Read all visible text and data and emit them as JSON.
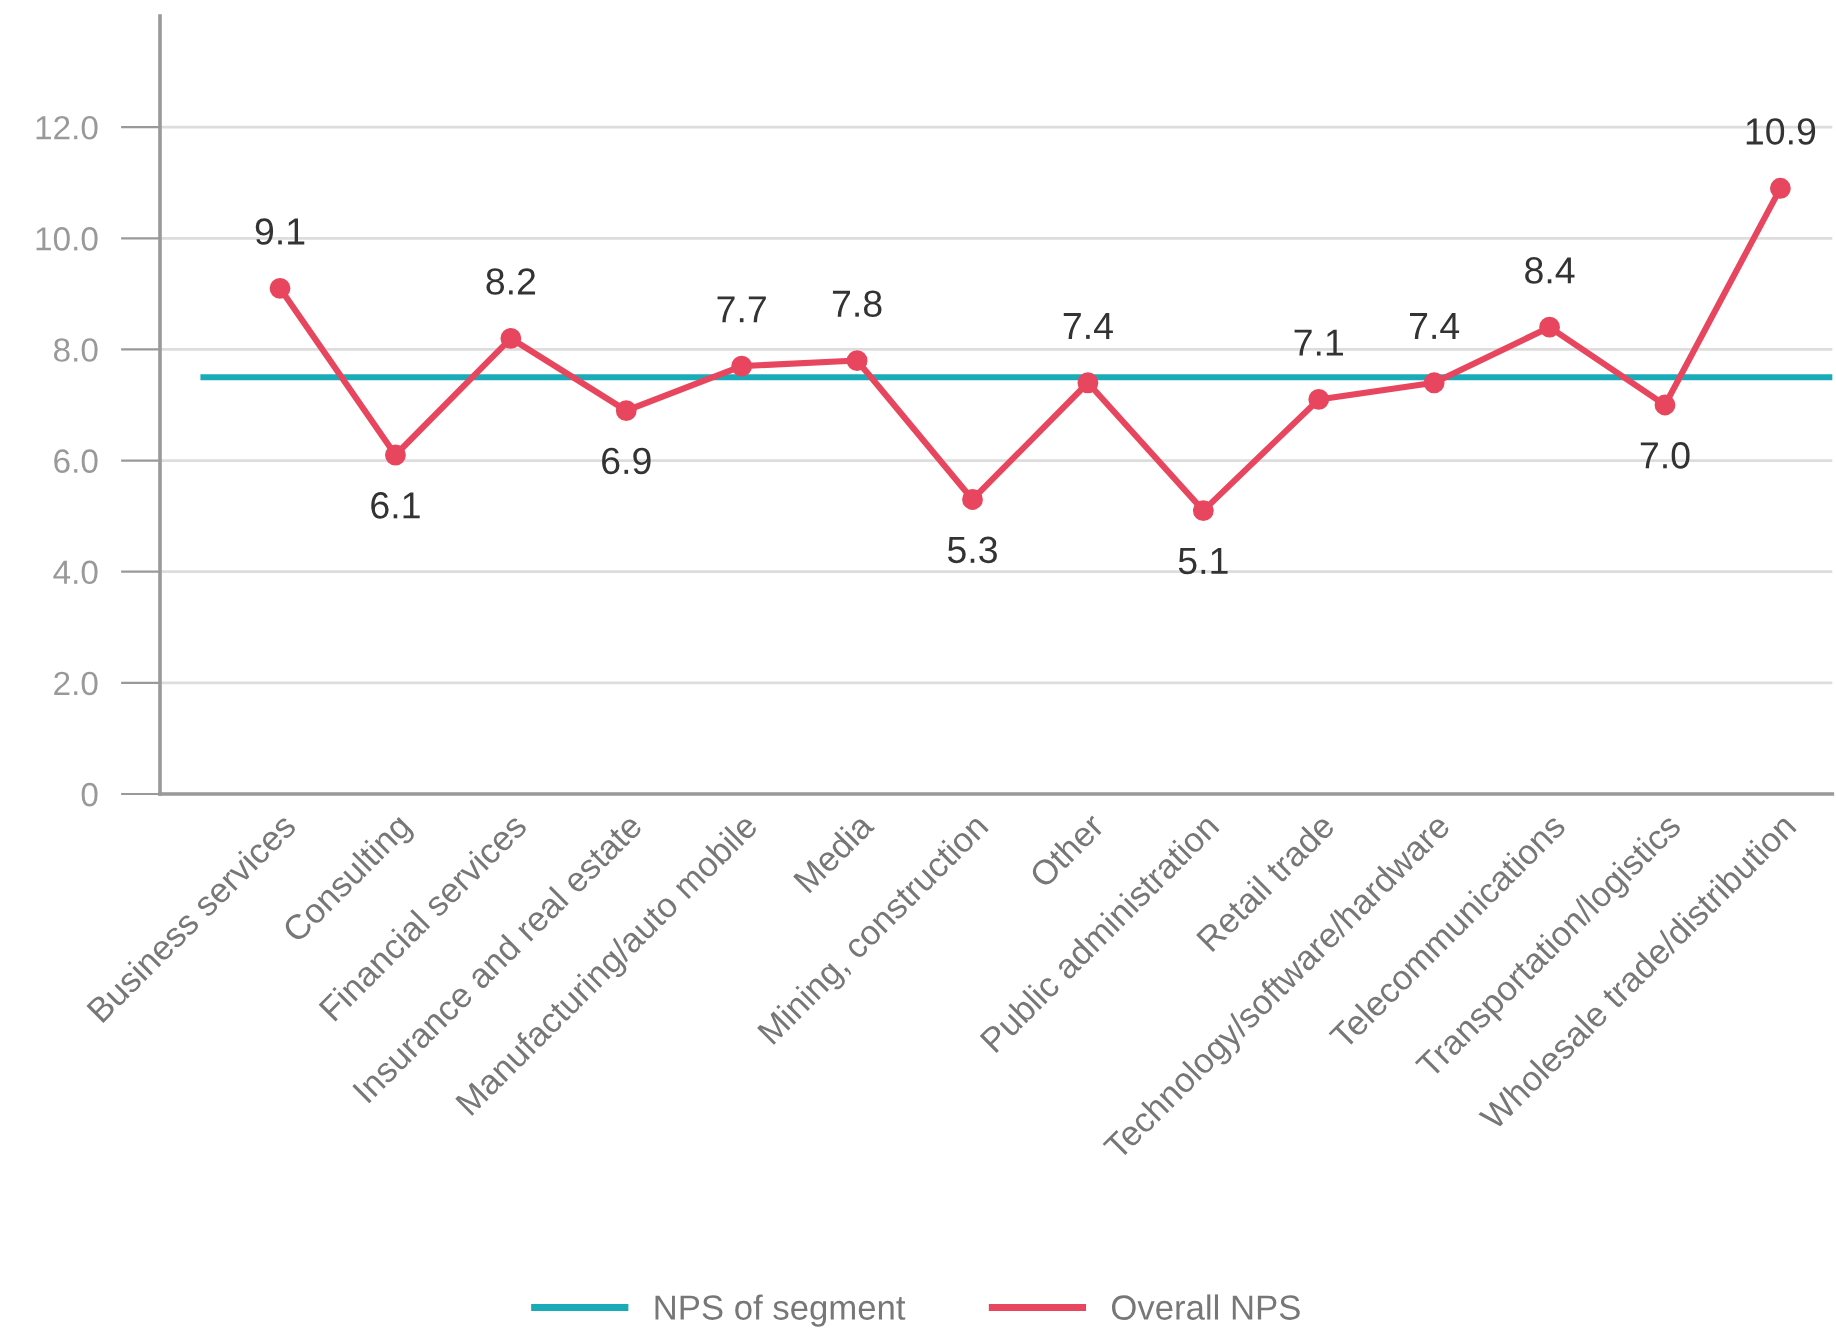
{
  "chart_data": {
    "type": "line",
    "categories": [
      "Business services",
      "Consulting",
      "Financial services",
      "Insurance and real estate",
      "Manufacturing/auto mobile",
      "Media",
      "Mining, construction",
      "Other",
      "Public administration",
      "Retail trade",
      "Technology/software/hardware",
      "Telecommunications",
      "Transportation/logistics",
      "Wholesale trade/distribution"
    ],
    "series": [
      {
        "name": "Overall NPS",
        "color": "#e8465e",
        "values": [
          9.1,
          6.1,
          8.2,
          6.9,
          7.7,
          7.8,
          5.3,
          7.4,
          5.1,
          7.1,
          7.4,
          8.4,
          7.0,
          10.9
        ],
        "value_labels": [
          "9.1",
          "6.1",
          "8.2",
          "6.9",
          "7.7",
          "7.8",
          "5.3",
          "7.4",
          "5.1",
          "7.1",
          "7.4",
          "8.4",
          "7.0",
          "10.9"
        ]
      }
    ],
    "ref_lines": [
      {
        "axis": "y",
        "value": 7.5,
        "label": "NPS of segment",
        "color": "#1aabb8",
        "line_style": "solid"
      }
    ],
    "ylim": [
      0,
      14
    ],
    "yticks": [
      0,
      {
        "value": 2,
        "label": "2.0"
      },
      {
        "value": 4,
        "label": "4.0"
      },
      {
        "value": 6,
        "label": "6.0"
      },
      {
        "value": 8,
        "label": "8.0"
      },
      {
        "value": 10,
        "label": "10.0"
      },
      {
        "value": 12,
        "label": "12.0"
      }
    ],
    "grid": "y",
    "marker": "circle",
    "line_style": "solid",
    "legend": "bottom"
  }
}
